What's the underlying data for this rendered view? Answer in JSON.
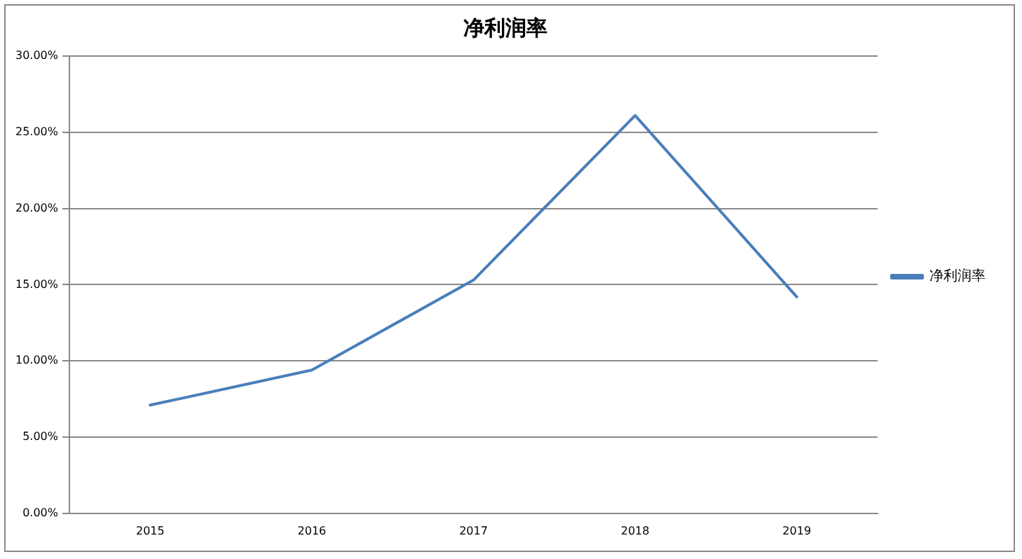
{
  "chart_data": {
    "type": "line",
    "title": "净利润率",
    "categories": [
      "2015",
      "2016",
      "2017",
      "2018",
      "2019"
    ],
    "series": [
      {
        "name": "净利润率",
        "color": "#4a7ebb",
        "values": [
          7.1,
          9.4,
          15.3,
          26.1,
          14.2
        ]
      }
    ],
    "ylim": [
      0,
      30
    ],
    "yticks": [
      {
        "value": 0,
        "label": "0.00%"
      },
      {
        "value": 5,
        "label": "5.00%"
      },
      {
        "value": 10,
        "label": "10.00%"
      },
      {
        "value": 15,
        "label": "15.00%"
      },
      {
        "value": 20,
        "label": "20.00%"
      },
      {
        "value": 25,
        "label": "25.00%"
      },
      {
        "value": 30,
        "label": "30.00%"
      }
    ],
    "grid": "y",
    "legend": "right",
    "marker": "none",
    "line_style": "solid"
  }
}
